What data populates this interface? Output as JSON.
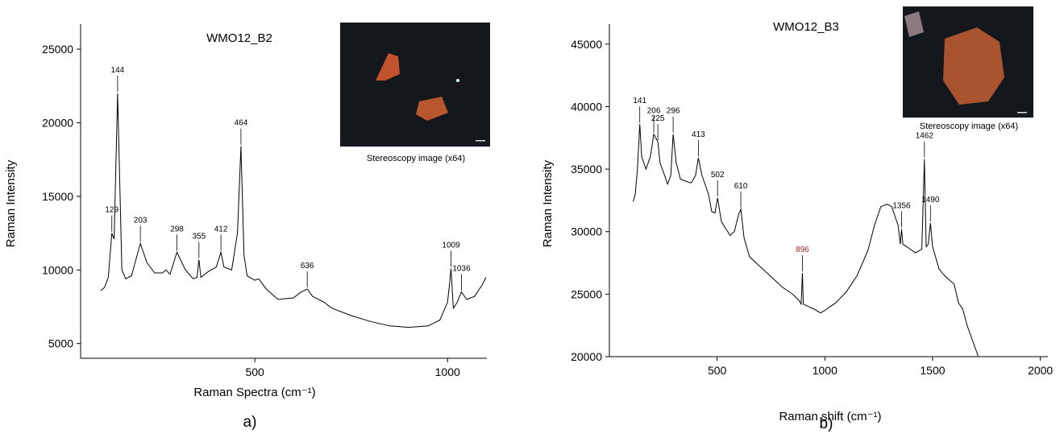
{
  "chart_data": [
    {
      "type": "line",
      "title": "WMO12_B2",
      "xlabel": "Raman Spectra (cm⁻¹)",
      "ylabel": "Raman Intensity",
      "panel_label": "a)",
      "inset_caption": "Stereoscopy image (x64)",
      "x": [
        100,
        110,
        120,
        129,
        135,
        144,
        155,
        165,
        180,
        203,
        220,
        240,
        260,
        270,
        280,
        298,
        320,
        340,
        350,
        355,
        360,
        380,
        400,
        412,
        420,
        440,
        455,
        464,
        472,
        480,
        500,
        510,
        530,
        560,
        600,
        620,
        636,
        650,
        680,
        700,
        750,
        800,
        850,
        900,
        950,
        980,
        1000,
        1005,
        1009,
        1015,
        1025,
        1036,
        1050,
        1070,
        1090,
        1100
      ],
      "values": [
        8600,
        8800,
        9500,
        12500,
        12100,
        22000,
        10000,
        9400,
        9600,
        11800,
        10500,
        9800,
        9800,
        10000,
        9700,
        11200,
        10000,
        9400,
        9500,
        10700,
        9500,
        9900,
        10200,
        11200,
        10200,
        10000,
        12500,
        18400,
        11000,
        9600,
        9300,
        9400,
        8700,
        8000,
        8100,
        8500,
        8700,
        8200,
        7800,
        7400,
        6900,
        6500,
        6200,
        6100,
        6200,
        6600,
        7800,
        9000,
        10100,
        7400,
        7800,
        8500,
        8000,
        8200,
        9000,
        9500
      ],
      "color": "#000000",
      "peaks": [
        129,
        144,
        203,
        298,
        355,
        412,
        464,
        636,
        1009,
        1036
      ],
      "peak_colors": [
        "#000000",
        "#000000",
        "#000000",
        "#000000",
        "#000000",
        "#000000",
        "#000000",
        "#000000",
        "#000000",
        "#000000"
      ],
      "xlim": [
        48,
        1102
      ],
      "ylim": [
        4000,
        26700
      ],
      "xticks": [
        500,
        1000
      ],
      "yticks": [
        5000,
        10000,
        15000,
        20000,
        25000
      ]
    },
    {
      "type": "line",
      "title": "WMO12_B3",
      "xlabel": "Raman shift (cm⁻¹)",
      "ylabel": "Raman Intensity",
      "panel_label": "b)",
      "inset_caption": "Stereoscopy image (x64)",
      "x": [
        110,
        120,
        130,
        141,
        150,
        170,
        190,
        206,
        215,
        225,
        235,
        250,
        270,
        285,
        296,
        310,
        330,
        360,
        380,
        400,
        413,
        430,
        460,
        475,
        490,
        502,
        520,
        560,
        580,
        600,
        610,
        625,
        650,
        700,
        750,
        800,
        850,
        880,
        890,
        896,
        900,
        950,
        980,
        1000,
        1050,
        1100,
        1150,
        1200,
        1230,
        1260,
        1290,
        1310,
        1340,
        1350,
        1356,
        1362,
        1380,
        1420,
        1450,
        1462,
        1470,
        1480,
        1490,
        1500,
        1530,
        1560,
        1600,
        1620,
        1640,
        1660,
        1712
      ],
      "values": [
        32400,
        33000,
        35000,
        38600,
        36000,
        35000,
        36000,
        37800,
        37500,
        37200,
        35500,
        34800,
        33800,
        34500,
        37800,
        35500,
        34200,
        34000,
        33900,
        34500,
        35900,
        34500,
        33000,
        31600,
        31500,
        32700,
        30800,
        29700,
        30000,
        31400,
        31800,
        29500,
        28000,
        27200,
        26400,
        25600,
        25000,
        24500,
        24200,
        26700,
        24200,
        23800,
        23500,
        23700,
        24300,
        25200,
        26500,
        28500,
        30500,
        32000,
        32200,
        32000,
        30500,
        29000,
        30200,
        29000,
        28800,
        28300,
        28600,
        35800,
        28800,
        29000,
        30700,
        28800,
        27000,
        26400,
        25800,
        24300,
        23800,
        22500,
        20000
      ],
      "color": "#000000",
      "peaks": [
        141,
        206,
        225,
        296,
        413,
        502,
        610,
        896,
        1356,
        1462,
        1490
      ],
      "peak_colors": [
        "#000000",
        "#000000",
        "#000000",
        "#000000",
        "#000000",
        "#000000",
        "#000000",
        "#a0282a",
        "#000000",
        "#000000",
        "#000000"
      ],
      "xlim": [
        0,
        2035
      ],
      "ylim": [
        20000,
        46600
      ],
      "xticks": [
        500,
        1000,
        1500,
        2000
      ],
      "yticks": [
        20000,
        25000,
        30000,
        35000,
        40000,
        45000
      ]
    }
  ]
}
